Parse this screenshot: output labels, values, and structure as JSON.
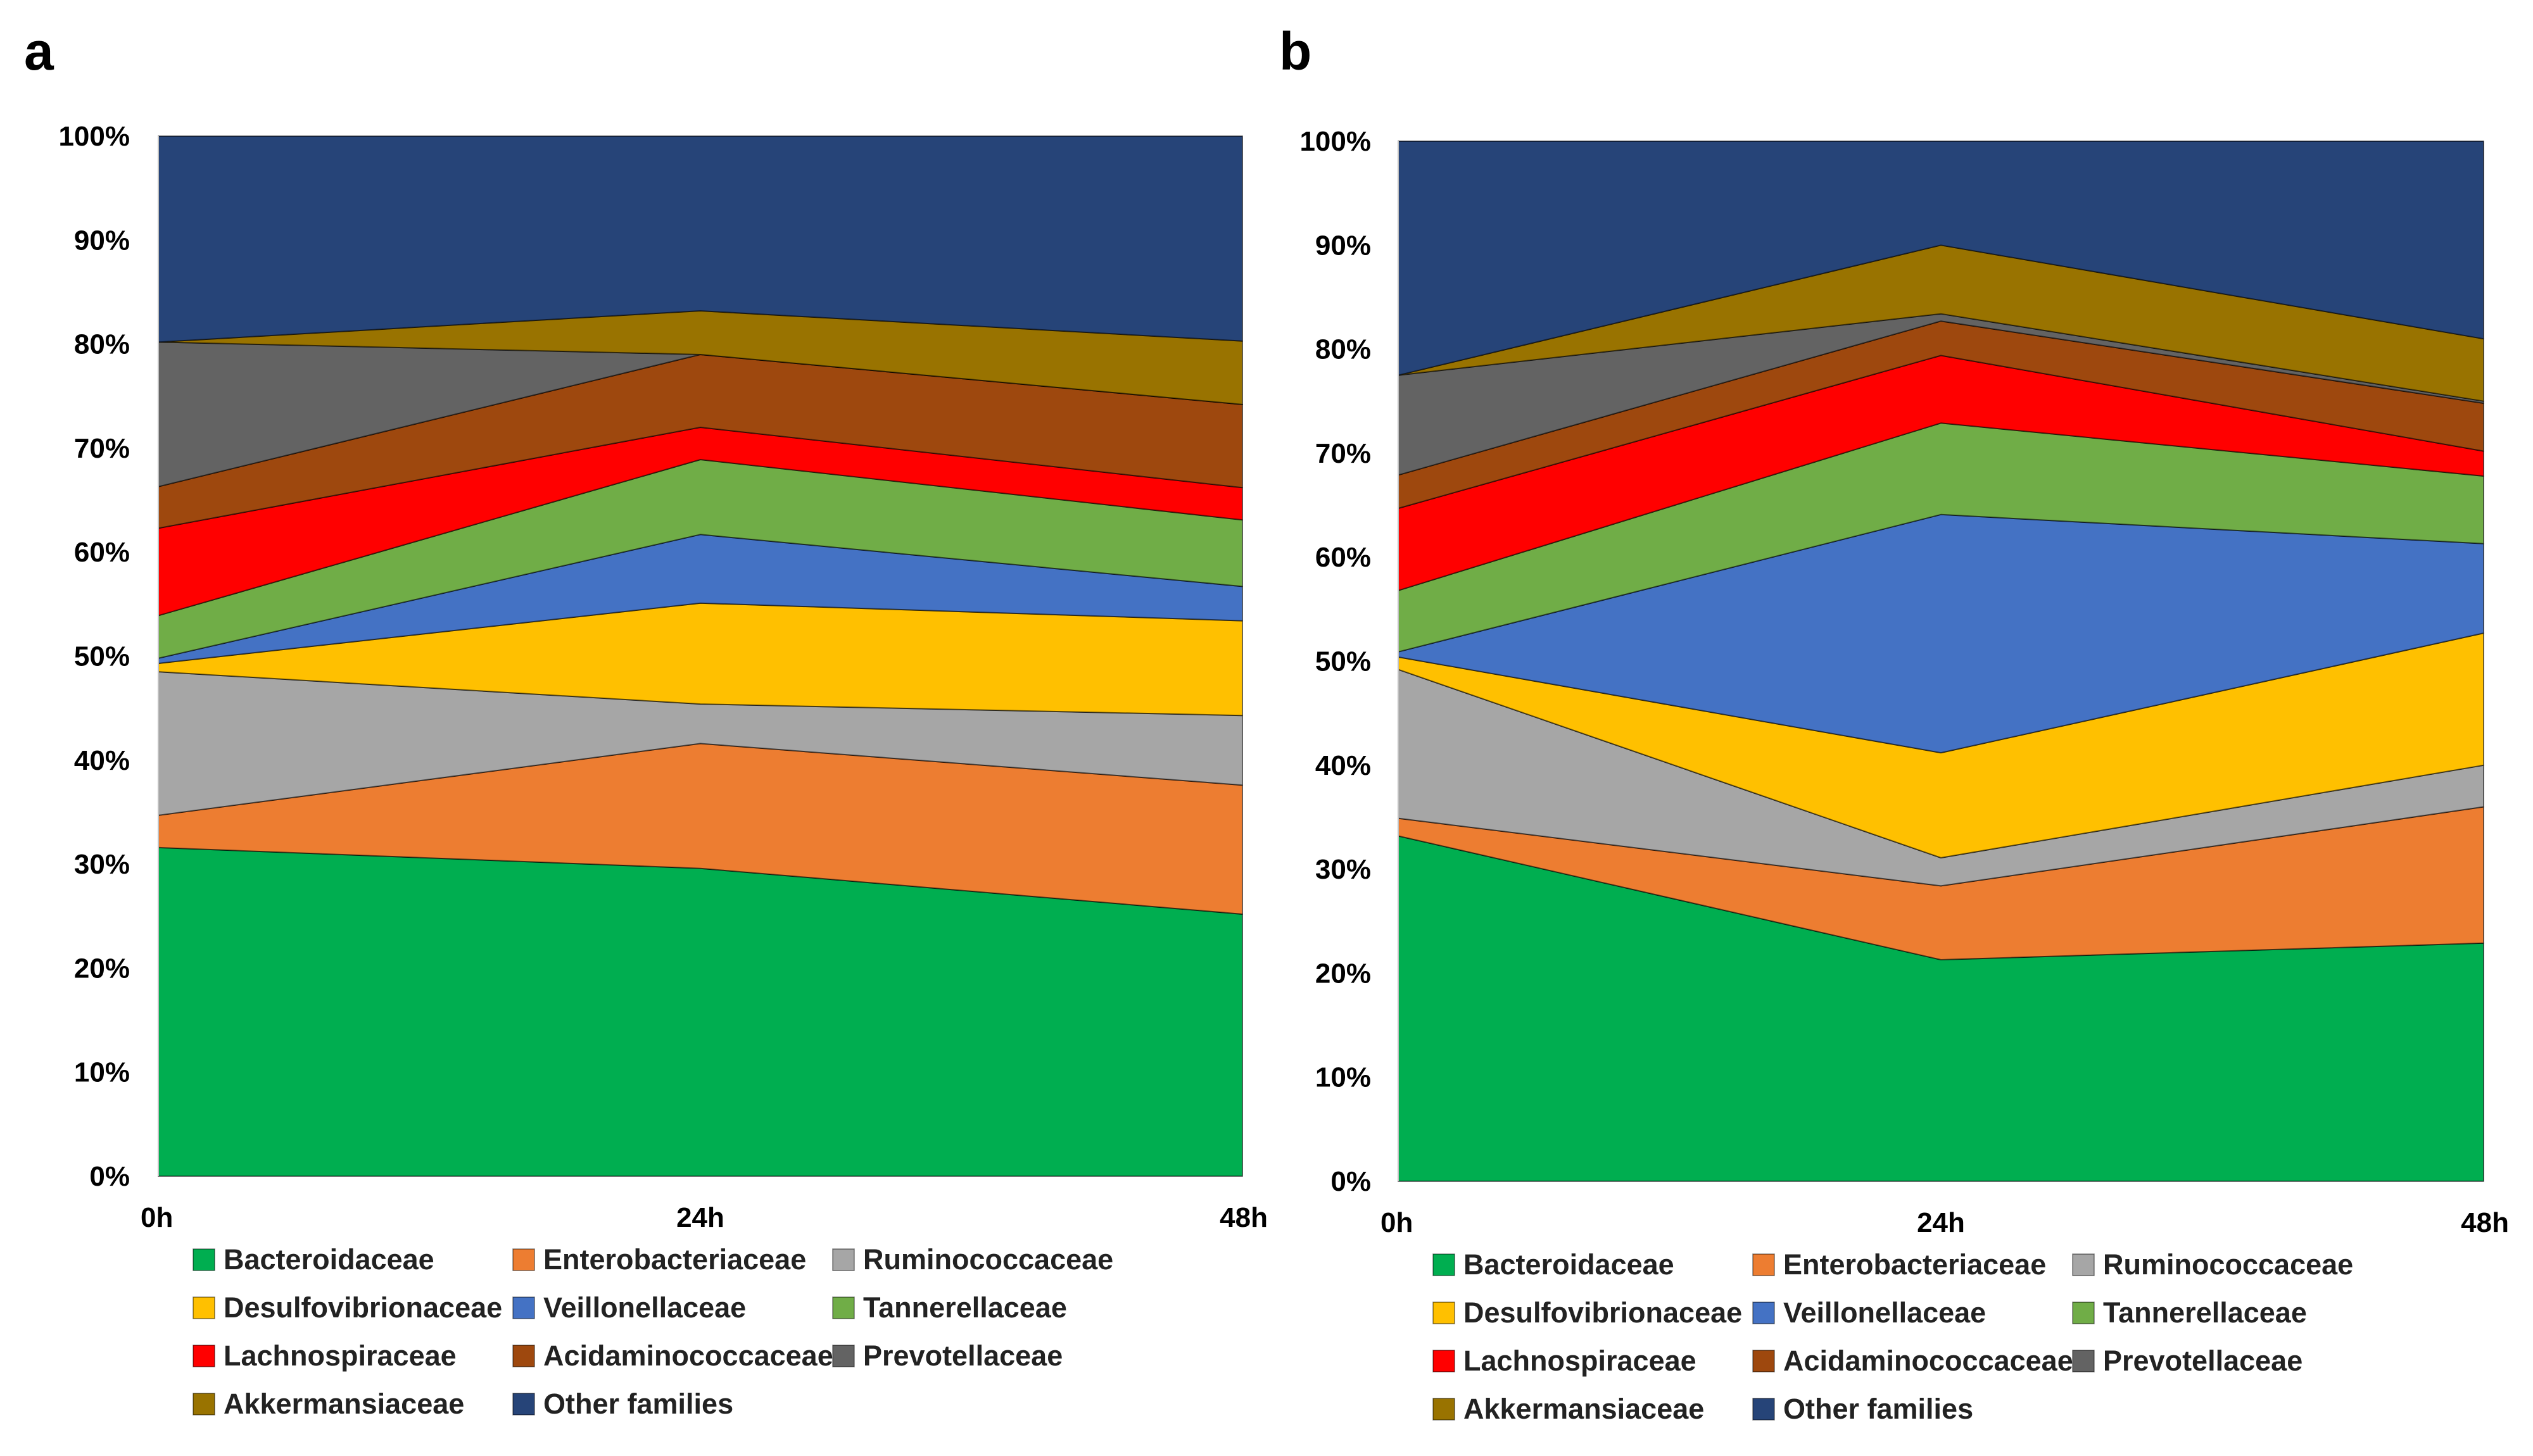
{
  "figure": {
    "panel_labels": [
      "a",
      "b"
    ]
  },
  "families": [
    {
      "name": "Bacteroidaceae",
      "color": "#00AE50"
    },
    {
      "name": "Enterobacteriaceae",
      "color": "#ED7D31"
    },
    {
      "name": "Ruminococcaceae",
      "color": "#A6A6A6"
    },
    {
      "name": "Desulfovibrionaceae",
      "color": "#FFC000"
    },
    {
      "name": "Veillonellaceae",
      "color": "#4472C4"
    },
    {
      "name": "Tannerellaceae",
      "color": "#70AD47"
    },
    {
      "name": "Lachnospiraceae",
      "color": "#FF0000"
    },
    {
      "name": "Acidaminococcaceae",
      "color": "#9E480E"
    },
    {
      "name": "Prevotellaceae",
      "color": "#636363"
    },
    {
      "name": "Akkermansiaceae",
      "color": "#997300"
    },
    {
      "name": "Other families",
      "color": "#264478"
    }
  ],
  "chart_data": [
    {
      "type": "area",
      "stacked": true,
      "panel": "a",
      "x": [
        "0h",
        "24h",
        "48h"
      ],
      "ylim": [
        0,
        100
      ],
      "y_ticks": [
        "0%",
        "10%",
        "20%",
        "30%",
        "40%",
        "50%",
        "60%",
        "70%",
        "80%",
        "90%",
        "100%"
      ],
      "series": [
        {
          "name": "Bacteroidaceae",
          "values": [
            31.6,
            29.6,
            25.2
          ]
        },
        {
          "name": "Enterobacteriaceae",
          "values": [
            3.1,
            12.0,
            12.4
          ]
        },
        {
          "name": "Ruminococcaceae",
          "values": [
            13.8,
            3.8,
            6.7
          ]
        },
        {
          "name": "Desulfovibrionaceae",
          "values": [
            0.8,
            9.7,
            9.1
          ]
        },
        {
          "name": "Veillonellaceae",
          "values": [
            0.5,
            6.6,
            3.3
          ]
        },
        {
          "name": "Tannerellaceae",
          "values": [
            4.1,
            7.2,
            6.4
          ]
        },
        {
          "name": "Lachnospiraceae",
          "values": [
            8.4,
            3.1,
            3.1
          ]
        },
        {
          "name": "Acidaminococcaceae",
          "values": [
            4.0,
            7.0,
            8.0
          ]
        },
        {
          "name": "Prevotellaceae",
          "values": [
            13.9,
            0.0,
            0.0
          ]
        },
        {
          "name": "Akkermansiaceae",
          "values": [
            0.0,
            4.2,
            6.1
          ]
        },
        {
          "name": "Other families",
          "values": [
            19.8,
            16.8,
            19.7
          ]
        }
      ]
    },
    {
      "type": "area",
      "stacked": true,
      "panel": "b",
      "x": [
        "0h",
        "24h",
        "48h"
      ],
      "ylim": [
        0,
        100
      ],
      "y_ticks": [
        "0%",
        "10%",
        "20%",
        "30%",
        "40%",
        "50%",
        "60%",
        "70%",
        "80%",
        "90%",
        "100%"
      ],
      "series": [
        {
          "name": "Bacteroidaceae",
          "values": [
            33.2,
            21.3,
            22.9
          ]
        },
        {
          "name": "Enterobacteriaceae",
          "values": [
            1.7,
            7.1,
            13.1
          ]
        },
        {
          "name": "Ruminococcaceae",
          "values": [
            14.3,
            2.7,
            4.0
          ]
        },
        {
          "name": "Desulfovibrionaceae",
          "values": [
            1.2,
            10.1,
            12.7
          ]
        },
        {
          "name": "Veillonellaceae",
          "values": [
            0.5,
            22.9,
            8.6
          ]
        },
        {
          "name": "Tannerellaceae",
          "values": [
            5.9,
            8.8,
            6.5
          ]
        },
        {
          "name": "Lachnospiraceae",
          "values": [
            7.9,
            6.5,
            2.4
          ]
        },
        {
          "name": "Acidaminococcaceae",
          "values": [
            3.2,
            3.3,
            4.6
          ]
        },
        {
          "name": "Prevotellaceae",
          "values": [
            9.6,
            0.7,
            0.2
          ]
        },
        {
          "name": "Akkermansiaceae",
          "values": [
            0.0,
            6.6,
            6.0
          ]
        },
        {
          "name": "Other families",
          "values": [
            22.5,
            10.0,
            19.0
          ]
        }
      ]
    }
  ]
}
